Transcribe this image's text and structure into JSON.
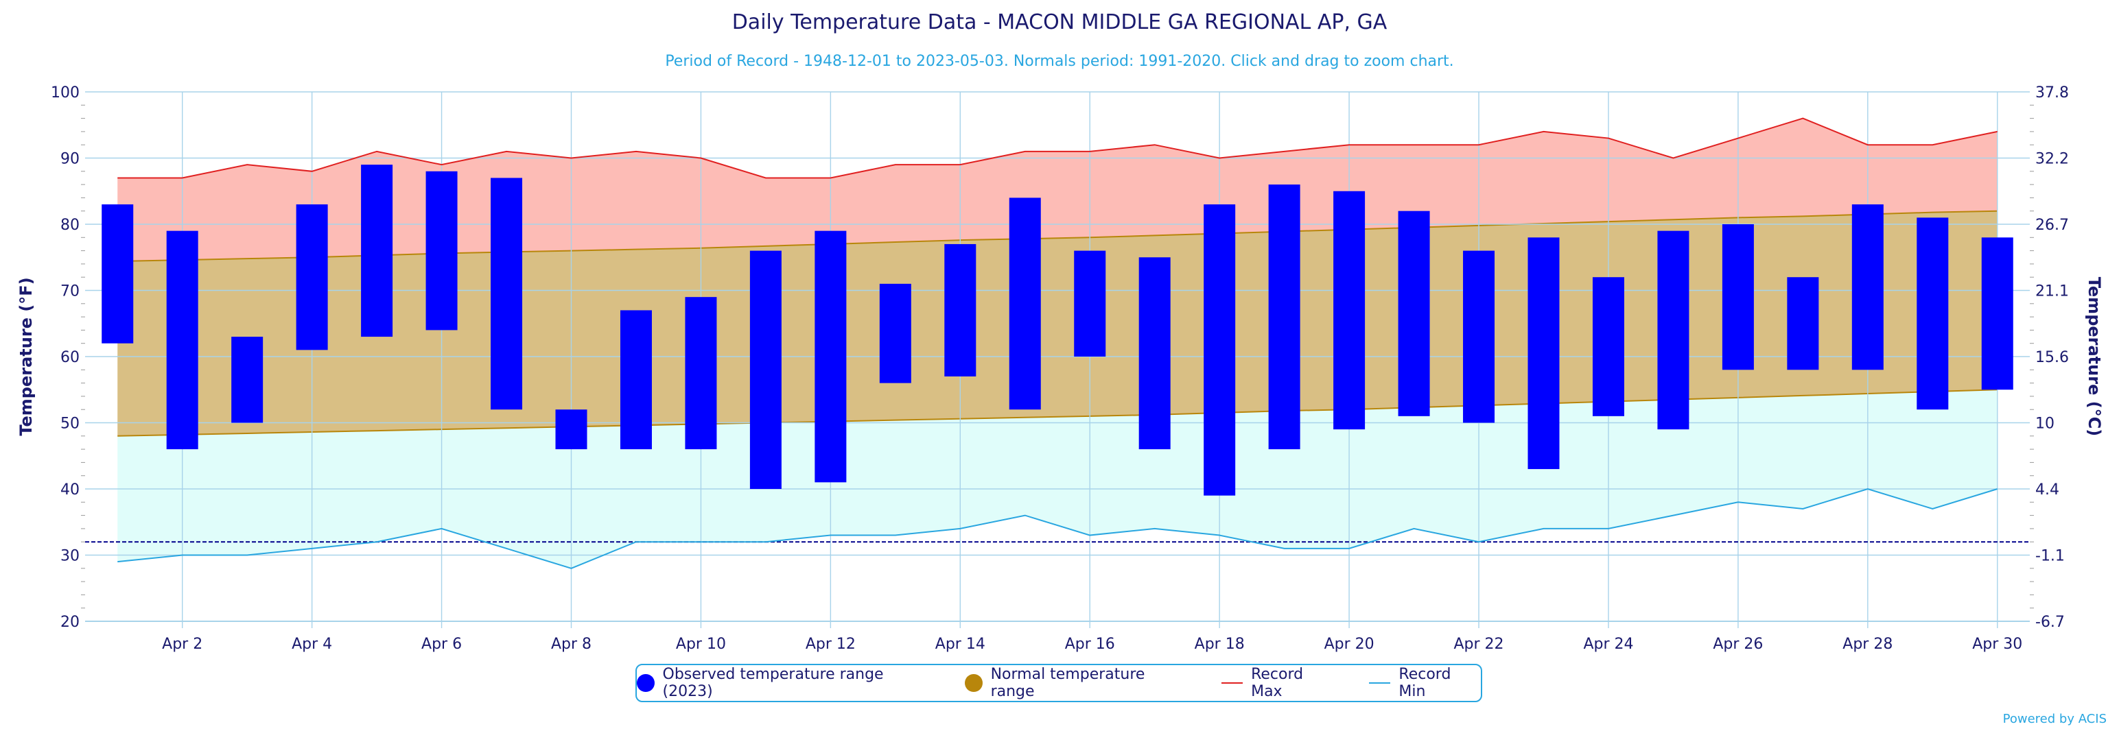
{
  "header": {
    "title": "Daily Temperature Data - MACON MIDDLE GA REGIONAL AP, GA",
    "subtitle": "Period of Record - 1948-12-01 to 2023-05-03. Normals period: 1991-2020. Click and drag to zoom chart."
  },
  "legend": {
    "observed": "Observed temperature range (2023)",
    "normal": "Normal temperature range",
    "record_max": "Record Max",
    "record_min": "Record Min"
  },
  "credits": "Powered by ACIS",
  "colors": {
    "observed": "#0000ff",
    "normal_fill": "#d9bf84",
    "normal_line": "#b8860b",
    "record_max_line": "#e02020",
    "record_max_fill": "#fdbcb6",
    "record_min_line": "#29a6e0",
    "record_min_fill": "#e0fdfa",
    "freezing_line": "#00008b",
    "text": "#1a1a6e",
    "grid": "#a8d3ea"
  },
  "chart_data": {
    "type": "bar",
    "title": "Daily Temperature Data - MACON MIDDLE GA REGIONAL AP, GA",
    "subtitle": "Period of Record - 1948-12-01 to 2023-05-03. Normals period: 1991-2020. Click and drag to zoom chart.",
    "ylabel": "Temperature (°F)",
    "y2label": "Temperature (°C)",
    "ylim": [
      20,
      100
    ],
    "yticks": [
      20,
      30,
      40,
      50,
      60,
      70,
      80,
      90,
      100
    ],
    "y2ticks": [
      "-6.7",
      "-1.1",
      "4.4",
      "10",
      "15.6",
      "21.1",
      "26.7",
      "32.2",
      "37.8"
    ],
    "x": [
      1,
      2,
      3,
      4,
      5,
      6,
      7,
      8,
      9,
      10,
      11,
      12,
      13,
      14,
      15,
      16,
      17,
      18,
      19,
      20,
      21,
      22,
      23,
      24,
      25,
      26,
      27,
      28,
      29,
      30
    ],
    "xlim": [
      0.5,
      30.5
    ],
    "xtick_labels": [
      {
        "day": 2,
        "label": "Apr 2"
      },
      {
        "day": 4,
        "label": "Apr 4"
      },
      {
        "day": 6,
        "label": "Apr 6"
      },
      {
        "day": 8,
        "label": "Apr 8"
      },
      {
        "day": 10,
        "label": "Apr 10"
      },
      {
        "day": 12,
        "label": "Apr 12"
      },
      {
        "day": 14,
        "label": "Apr 14"
      },
      {
        "day": 16,
        "label": "Apr 16"
      },
      {
        "day": 18,
        "label": "Apr 18"
      },
      {
        "day": 20,
        "label": "Apr 20"
      },
      {
        "day": 22,
        "label": "Apr 22"
      },
      {
        "day": 24,
        "label": "Apr 24"
      },
      {
        "day": 26,
        "label": "Apr 26"
      },
      {
        "day": 28,
        "label": "Apr 28"
      },
      {
        "day": 30,
        "label": "Apr 30"
      }
    ],
    "freezing": 32,
    "series": [
      {
        "name": "Observed temperature range (2023)",
        "low": [
          62,
          46,
          50,
          61,
          63,
          64,
          52,
          46,
          46,
          46,
          40,
          41,
          56,
          57,
          52,
          60,
          46,
          39,
          46,
          49,
          51,
          50,
          43,
          51,
          49,
          58,
          58,
          58,
          52,
          55
        ],
        "high": [
          83,
          79,
          63,
          83,
          89,
          88,
          87,
          52,
          67,
          69,
          76,
          79,
          71,
          77,
          84,
          76,
          75,
          83,
          86,
          85,
          82,
          76,
          78,
          72,
          79,
          80,
          72,
          83,
          81,
          78
        ]
      },
      {
        "name": "Normal temperature range",
        "low": [
          48,
          48.2,
          48.4,
          48.6,
          48.8,
          49,
          49.2,
          49.4,
          49.6,
          49.8,
          50,
          50.2,
          50.4,
          50.6,
          50.8,
          51,
          51.2,
          51.5,
          51.8,
          52,
          52.3,
          52.6,
          52.9,
          53.2,
          53.5,
          53.8,
          54.1,
          54.4,
          54.7,
          55
        ],
        "high": [
          74.4,
          74.6,
          74.8,
          75,
          75.3,
          75.6,
          75.8,
          76,
          76.2,
          76.4,
          76.7,
          77,
          77.3,
          77.6,
          77.8,
          78,
          78.3,
          78.6,
          78.9,
          79.2,
          79.5,
          79.8,
          80.1,
          80.4,
          80.7,
          81,
          81.2,
          81.5,
          81.8,
          82
        ]
      },
      {
        "name": "Record Max",
        "values": [
          87,
          87,
          89,
          88,
          91,
          89,
          91,
          90,
          91,
          90,
          87,
          87,
          89,
          89,
          91,
          91,
          92,
          90,
          91,
          92,
          92,
          92,
          94,
          93,
          90,
          93,
          96,
          92,
          92,
          94
        ]
      },
      {
        "name": "Record Min",
        "values": [
          29,
          30,
          30,
          31,
          32,
          34,
          31,
          28,
          32,
          32,
          32,
          33,
          33,
          34,
          36,
          33,
          34,
          33,
          31,
          31,
          34,
          32,
          34,
          34,
          36,
          38,
          37,
          40,
          37,
          40
        ]
      }
    ]
  }
}
